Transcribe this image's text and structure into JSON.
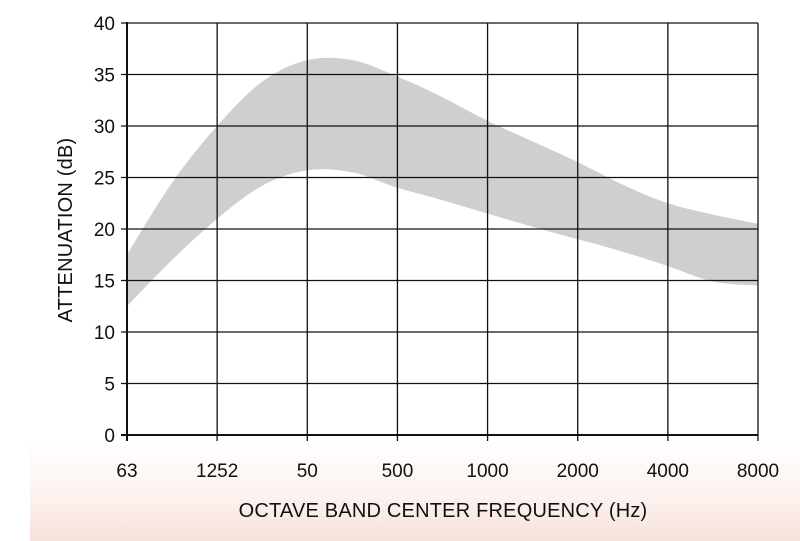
{
  "chart_data": {
    "type": "area",
    "title": "",
    "xlabel": "OCTAVE BAND CENTER FREQUENCY (Hz)",
    "ylabel": "ATTENUATION (dB)",
    "x_tick_labels": [
      "63",
      "1252",
      "50",
      "500",
      "1000",
      "2000",
      "4000",
      "8000"
    ],
    "y_ticks": [
      0,
      5,
      10,
      15,
      20,
      25,
      30,
      35,
      40
    ],
    "ylim": [
      0,
      40
    ],
    "grid": true,
    "band_color": "#cfcfd0",
    "grid_color": "#111111",
    "band": {
      "x": [
        0,
        0.5,
        1,
        1.5,
        2,
        2.5,
        3,
        3.5,
        4,
        4.5,
        5,
        5.5,
        6,
        6.5,
        7
      ],
      "upper": [
        17.5,
        24.5,
        30.0,
        34.3,
        36.4,
        36.4,
        34.8,
        32.8,
        30.5,
        28.5,
        26.5,
        24.3,
        22.5,
        21.4,
        20.5
      ],
      "lower": [
        12.5,
        17.0,
        21.0,
        24.2,
        25.7,
        25.5,
        24.0,
        22.8,
        21.5,
        20.2,
        19.0,
        17.8,
        16.4,
        14.9,
        14.5
      ]
    }
  }
}
